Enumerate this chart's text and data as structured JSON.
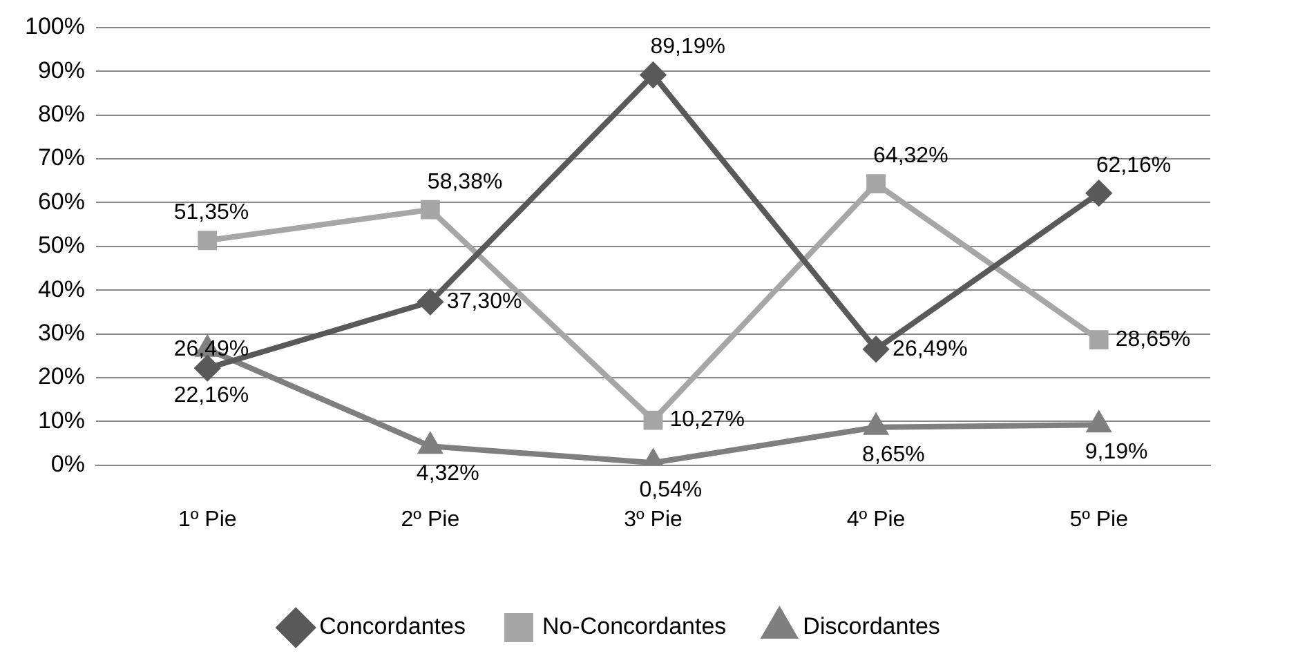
{
  "chart_data": {
    "type": "line",
    "categories": [
      "1º Pie",
      "2º Pie",
      "3º Pie",
      "4º Pie",
      "5º Pie"
    ],
    "ylim": [
      0,
      100
    ],
    "yticks": [
      {
        "value": 0,
        "label": "0%"
      },
      {
        "value": 10,
        "label": "10%"
      },
      {
        "value": 20,
        "label": "20%"
      },
      {
        "value": 30,
        "label": "30%"
      },
      {
        "value": 40,
        "label": "40%"
      },
      {
        "value": 50,
        "label": "50%"
      },
      {
        "value": 60,
        "label": "60%"
      },
      {
        "value": 70,
        "label": "70%"
      },
      {
        "value": 80,
        "label": "80%"
      },
      {
        "value": 90,
        "label": "90%"
      },
      {
        "value": 100,
        "label": "100%"
      }
    ],
    "grid": "y",
    "legend": "bottom",
    "line_style": "solid",
    "series": [
      {
        "name": "Concordantes",
        "color": "#595959",
        "marker": "diamond",
        "values": [
          22.16,
          37.3,
          89.19,
          26.49,
          62.16
        ],
        "value_labels": [
          "22,16%",
          "37,30%",
          "89,19%",
          "26,49%",
          "62,16%"
        ]
      },
      {
        "name": "No-Concordantes",
        "color": "#a6a6a6",
        "marker": "square",
        "values": [
          51.35,
          58.38,
          10.27,
          64.32,
          28.65
        ],
        "value_labels": [
          "51,35%",
          "58,38%",
          "10,27%",
          "64,32%",
          "28,65%"
        ]
      },
      {
        "name": "Discordantes",
        "color": "#7f7f7f",
        "marker": "triangle",
        "values": [
          26.49,
          4.32,
          0.54,
          8.65,
          9.19
        ],
        "value_labels": [
          "26,49%",
          "4,32%",
          "0,54%",
          "8,65%",
          "9,19%"
        ]
      }
    ]
  }
}
